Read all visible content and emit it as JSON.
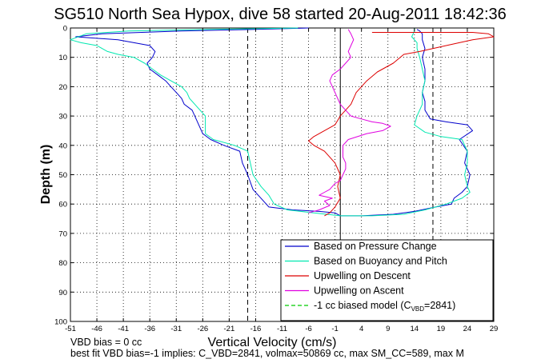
{
  "chart_data": {
    "type": "line",
    "title": "SG510 North Sea Hypox, dive 58 started 20-Aug-2011 18:42:36",
    "xlabel": "Vertical Velocity (cm/s)",
    "ylabel": "Depth (m)",
    "xlim": [
      -51,
      29
    ],
    "ylim": [
      0,
      100
    ],
    "y_reversed": true,
    "grid": true,
    "x_ticks": [
      -51,
      -46,
      -41,
      -36,
      -31,
      -26,
      -21,
      -16,
      -11,
      -6,
      -1,
      4,
      9,
      14,
      19,
      24,
      29
    ],
    "y_ticks": [
      0,
      10,
      20,
      30,
      40,
      50,
      60,
      70,
      80,
      90,
      100
    ],
    "legend_position": "bottom-right",
    "series": [
      {
        "name": "Based on Pressure Change",
        "color": "#0000cc",
        "style": "solid",
        "points": [
          [
            -6,
            0
          ],
          [
            -16,
            0.5
          ],
          [
            -30,
            1
          ],
          [
            -45,
            2
          ],
          [
            -50,
            3
          ],
          [
            -42,
            4
          ],
          [
            -36,
            6
          ],
          [
            -35,
            8
          ],
          [
            -35.5,
            10
          ],
          [
            -36.5,
            12
          ],
          [
            -36,
            14
          ],
          [
            -34.5,
            16
          ],
          [
            -33,
            18
          ],
          [
            -32,
            20
          ],
          [
            -31,
            22
          ],
          [
            -30,
            24
          ],
          [
            -29.5,
            26
          ],
          [
            -28,
            28
          ],
          [
            -27,
            32
          ],
          [
            -26.5,
            34
          ],
          [
            -26,
            36
          ],
          [
            -24.5,
            38
          ],
          [
            -22,
            40
          ],
          [
            -19,
            42
          ],
          [
            -18.5,
            46
          ],
          [
            -17.5,
            50
          ],
          [
            -16.5,
            55
          ],
          [
            -15,
            58
          ],
          [
            -13.5,
            61
          ],
          [
            -9,
            62
          ],
          [
            -4,
            62.5
          ],
          [
            -1,
            63
          ],
          [
            0,
            64
          ],
          [
            4,
            64
          ],
          [
            10,
            63.5
          ],
          [
            14,
            62.5
          ],
          [
            18,
            61
          ],
          [
            21,
            60
          ],
          [
            21.5,
            58
          ],
          [
            23,
            56
          ],
          [
            24,
            54
          ],
          [
            24.5,
            50
          ],
          [
            23.5,
            46
          ],
          [
            24,
            42
          ],
          [
            22.5,
            38
          ],
          [
            25,
            35
          ],
          [
            24,
            33
          ],
          [
            20,
            32
          ],
          [
            17,
            31
          ],
          [
            16,
            28
          ],
          [
            16,
            25
          ],
          [
            15.5,
            22
          ],
          [
            16,
            18
          ],
          [
            16,
            14
          ],
          [
            15.5,
            10
          ],
          [
            16,
            7
          ],
          [
            15.5,
            4
          ],
          [
            15.5,
            2
          ],
          [
            15,
            1
          ],
          [
            14.5,
            0.5
          ]
        ]
      },
      {
        "name": "Based on Buoyancy and Pitch",
        "color": "#00e8b0",
        "style": "solid",
        "points": [
          [
            -8,
            0
          ],
          [
            -25,
            0.5
          ],
          [
            -40,
            1
          ],
          [
            -48,
            2
          ],
          [
            -51,
            4
          ],
          [
            -49,
            5
          ],
          [
            -46,
            6
          ],
          [
            -44,
            8
          ],
          [
            -42,
            9
          ],
          [
            -39,
            10
          ],
          [
            -37,
            12
          ],
          [
            -35.5,
            14
          ],
          [
            -34,
            16
          ],
          [
            -32,
            18
          ],
          [
            -30,
            20
          ],
          [
            -29,
            22
          ],
          [
            -28.5,
            24
          ],
          [
            -27.5,
            26
          ],
          [
            -26.5,
            28
          ],
          [
            -25.5,
            30
          ],
          [
            -25.5,
            32
          ],
          [
            -25.5,
            34
          ],
          [
            -25.5,
            36
          ],
          [
            -24,
            38
          ],
          [
            -20,
            40
          ],
          [
            -17.5,
            42
          ],
          [
            -17,
            46
          ],
          [
            -16.5,
            50
          ],
          [
            -15,
            54
          ],
          [
            -13.5,
            57
          ],
          [
            -12.5,
            60
          ],
          [
            -10,
            62
          ],
          [
            -5,
            63
          ],
          [
            0,
            64
          ],
          [
            6,
            64
          ],
          [
            12,
            63.5
          ],
          [
            16,
            62
          ],
          [
            20,
            60
          ],
          [
            23,
            58
          ],
          [
            24.5,
            56
          ],
          [
            24,
            54
          ],
          [
            23.5,
            50
          ],
          [
            24,
            46
          ],
          [
            24,
            42
          ],
          [
            23,
            38
          ],
          [
            19,
            37
          ],
          [
            16,
            35.5
          ],
          [
            14,
            33
          ],
          [
            14.5,
            30
          ],
          [
            15.5,
            26
          ],
          [
            15.5,
            22
          ],
          [
            16,
            18
          ],
          [
            15.5,
            14
          ],
          [
            15,
            10
          ],
          [
            14.5,
            7
          ],
          [
            14.5,
            5
          ],
          [
            13.5,
            3
          ],
          [
            14,
            1
          ],
          [
            14,
            0
          ]
        ]
      },
      {
        "name": "Upwelling on Descent",
        "color": "#dd0000",
        "style": "solid",
        "points": [
          [
            6,
            1.5
          ],
          [
            10,
            1.5
          ],
          [
            14,
            1.5
          ],
          [
            19,
            1.5
          ],
          [
            25,
            1.5
          ],
          [
            28,
            2
          ],
          [
            29,
            3
          ],
          [
            25,
            4
          ],
          [
            20,
            6
          ],
          [
            15,
            8
          ],
          [
            12,
            9
          ],
          [
            10,
            12
          ],
          [
            7,
            15
          ],
          [
            5,
            18
          ],
          [
            3,
            22
          ],
          [
            2,
            26
          ],
          [
            0,
            30
          ],
          [
            -1,
            33
          ],
          [
            -3,
            35
          ],
          [
            -5,
            37
          ],
          [
            -6,
            38.5
          ],
          [
            -5,
            40
          ],
          [
            -3,
            42
          ],
          [
            -1,
            46
          ],
          [
            0,
            50
          ],
          [
            -0.5,
            54
          ],
          [
            0,
            58
          ],
          [
            -1,
            61
          ],
          [
            -2,
            63
          ],
          [
            -3,
            64
          ]
        ]
      },
      {
        "name": "Upwelling on Ascent",
        "color": "#e000e0",
        "style": "solid",
        "points": [
          [
            -6,
            63
          ],
          [
            -4,
            62
          ],
          [
            -2,
            60.5
          ],
          [
            -3,
            59
          ],
          [
            -1.5,
            58
          ],
          [
            -4,
            57
          ],
          [
            -3,
            56
          ],
          [
            -2,
            55
          ],
          [
            -1.5,
            54
          ],
          [
            -1,
            53
          ],
          [
            0,
            52
          ],
          [
            0.5,
            50
          ],
          [
            1,
            48
          ],
          [
            1,
            46
          ],
          [
            0.5,
            44
          ],
          [
            0.5,
            42
          ],
          [
            0.5,
            40
          ],
          [
            1.5,
            38
          ],
          [
            5,
            36
          ],
          [
            8,
            35
          ],
          [
            9.5,
            33.5
          ],
          [
            8,
            32.5
          ],
          [
            6,
            32
          ],
          [
            4,
            31
          ],
          [
            2,
            30
          ],
          [
            1,
            28
          ],
          [
            0,
            26
          ],
          [
            -0.5,
            24
          ],
          [
            -1,
            22
          ],
          [
            -1.5,
            20
          ],
          [
            -2,
            18
          ],
          [
            -1.5,
            16
          ],
          [
            0,
            14
          ],
          [
            1,
            12
          ],
          [
            2,
            10
          ],
          [
            1.5,
            8
          ],
          [
            2,
            6
          ],
          [
            2.5,
            4
          ],
          [
            2,
            2
          ],
          [
            1.5,
            0.5
          ]
        ]
      }
    ],
    "reference_lines": [
      {
        "name": "-1 cc biased model (C_VBD=2841)",
        "color": "#00cc00",
        "style": "dashed",
        "label_main": "-1 cc biased model (C",
        "label_sub": "VBD",
        "label_tail": "=2841)"
      }
    ],
    "vertical_lines": [
      {
        "x": -17.5,
        "style": "dashed",
        "color": "#000000"
      },
      {
        "x": 0,
        "style": "solid",
        "color": "#000000"
      },
      {
        "x": 17.5,
        "style": "dashed",
        "color": "#000000"
      }
    ]
  },
  "footer": {
    "line1": "VBD bias = 0 cc",
    "line2": "best fit VBD bias=-1 implies: C_VBD=2841, volmax=50869 cc, max SM_CC=589, max M"
  }
}
